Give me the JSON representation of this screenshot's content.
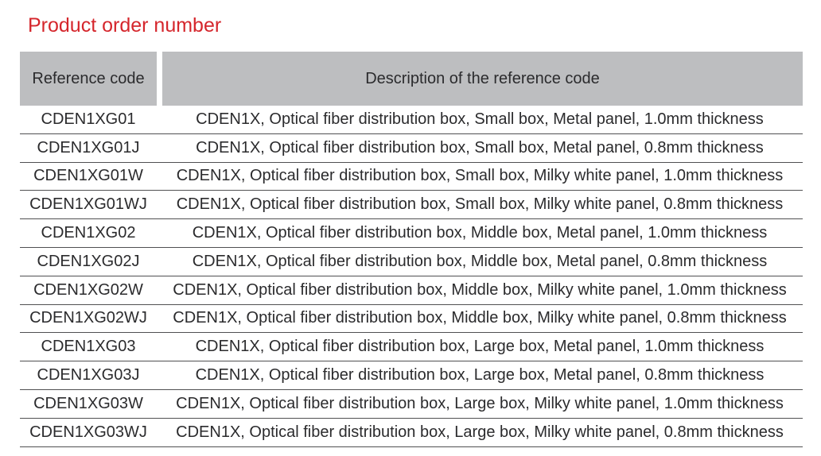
{
  "page": {
    "title": "Product order number"
  },
  "table": {
    "headers": {
      "reference": "Reference code",
      "description": "Description of the reference code"
    },
    "rows": [
      {
        "code": "CDEN1XG01",
        "description": "CDEN1X, Optical fiber distribution box, Small box, Metal panel, 1.0mm thickness"
      },
      {
        "code": "CDEN1XG01J",
        "description": "CDEN1X, Optical fiber distribution box, Small box, Metal panel, 0.8mm thickness"
      },
      {
        "code": "CDEN1XG01W",
        "description": "CDEN1X, Optical fiber distribution box, Small box, Milky white panel, 1.0mm thickness"
      },
      {
        "code": "CDEN1XG01WJ",
        "description": "CDEN1X, Optical fiber distribution box, Small box, Milky white panel, 0.8mm thickness"
      },
      {
        "code": "CDEN1XG02",
        "description": "CDEN1X, Optical fiber distribution box, Middle box, Metal panel, 1.0mm thickness"
      },
      {
        "code": "CDEN1XG02J",
        "description": "CDEN1X, Optical fiber distribution box, Middle box, Metal panel, 0.8mm thickness"
      },
      {
        "code": "CDEN1XG02W",
        "description": "CDEN1X, Optical fiber distribution box, Middle box, Milky white panel, 1.0mm thickness"
      },
      {
        "code": "CDEN1XG02WJ",
        "description": "CDEN1X, Optical fiber distribution box, Middle box, Milky white panel, 0.8mm thickness"
      },
      {
        "code": "CDEN1XG03",
        "description": "CDEN1X, Optical fiber distribution box, Large box, Metal panel, 1.0mm thickness"
      },
      {
        "code": "CDEN1XG03J",
        "description": "CDEN1X, Optical fiber distribution box, Large box, Metal panel, 0.8mm thickness"
      },
      {
        "code": "CDEN1XG03W",
        "description": "CDEN1X, Optical fiber distribution box, Large box, Milky white panel, 1.0mm thickness"
      },
      {
        "code": "CDEN1XG03WJ",
        "description": "CDEN1X, Optical fiber distribution box, Large box, Milky white panel, 0.8mm thickness"
      }
    ]
  },
  "colors": {
    "title": "#d5262c",
    "header_bg": "#bdbec0",
    "row_line": "#505052",
    "text": "#2b2b2d"
  }
}
